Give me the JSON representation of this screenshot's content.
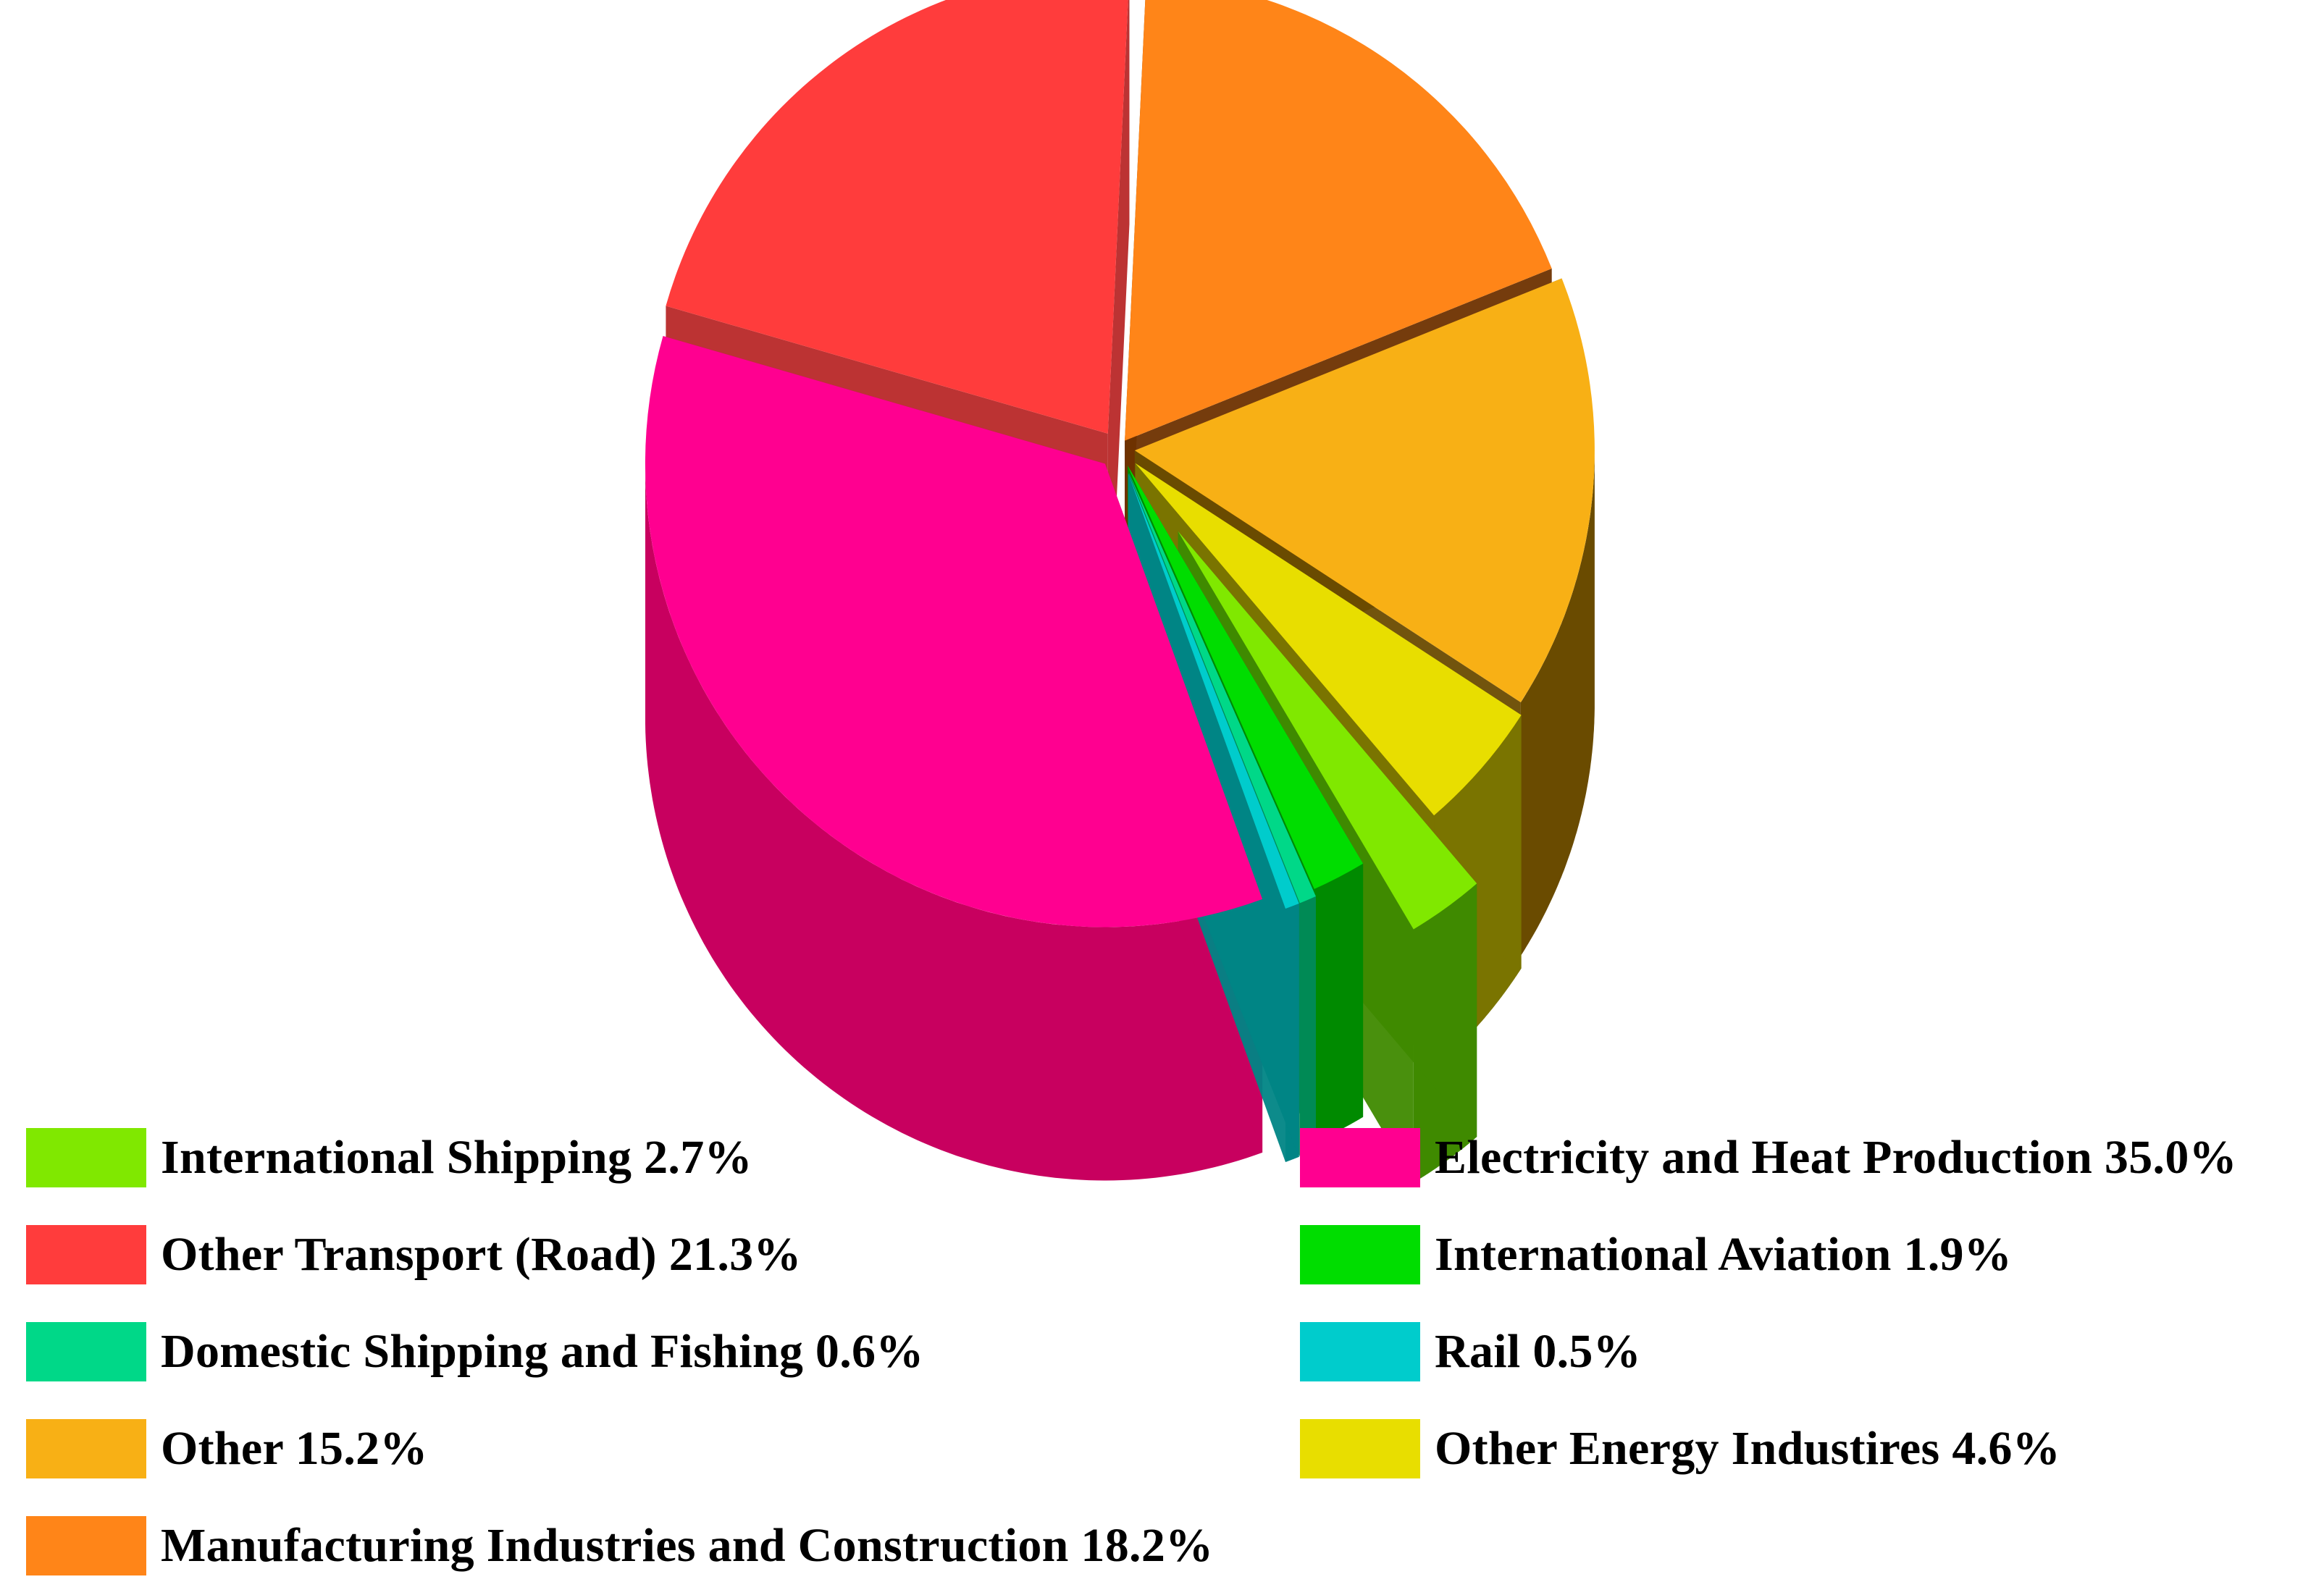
{
  "chart_data": {
    "type": "pie",
    "title": "",
    "style": "3d-exploded",
    "legend_placement": "bottom",
    "slices": [
      {
        "label": "Electricity and Heat Production",
        "value": 35.0,
        "color": "#ff0090",
        "side_color": "#c8005f",
        "legend_text": "Electricity and Heat Production 35.0%"
      },
      {
        "label": "Other Transport (Road)",
        "value": 21.3,
        "color": "#ff3c3c",
        "side_color": "#b82828",
        "legend_text": "Other Transport (Road) 21.3%"
      },
      {
        "label": "Manufacturing Industries and Construction",
        "value": 18.2,
        "color": "#ff8518",
        "side_color": "#6e3200",
        "legend_text": "Manufacturing Industries and Construction 18.2%"
      },
      {
        "label": "Other",
        "value": 15.2,
        "color": "#f8b015",
        "side_color": "#6a4b00",
        "legend_text": "Other 15.2%"
      },
      {
        "label": "Other Energy Industires",
        "value": 4.6,
        "color": "#e8de00",
        "side_color": "#7a7400",
        "legend_text": "Other Energy Industires 4.6%"
      },
      {
        "label": "International Shipping",
        "value": 2.7,
        "color": "#80e800",
        "side_color": "#3f8a00",
        "legend_text": "International Shipping 2.7%"
      },
      {
        "label": "International Aviation",
        "value": 1.9,
        "color": "#00dd00",
        "side_color": "#008a00",
        "legend_text": "International Aviation 1.9%"
      },
      {
        "label": "Domestic Shipping and Fishing",
        "value": 0.6,
        "color": "#00d888",
        "side_color": "#008a55",
        "legend_text": "Domestic Shipping and Fishing 0.6%"
      },
      {
        "label": "Rail",
        "value": 0.5,
        "color": "#00cccc",
        "side_color": "#008585",
        "legend_text": "Rail 0.5%"
      }
    ],
    "legend_order": [
      "International Shipping",
      "Electricity and Heat Production",
      "Other Transport (Road)",
      "International Aviation",
      "Domestic Shipping and Fishing",
      "Rail",
      "Other",
      "Other Energy Industires",
      "Manufacturing Industries and Construction"
    ]
  }
}
